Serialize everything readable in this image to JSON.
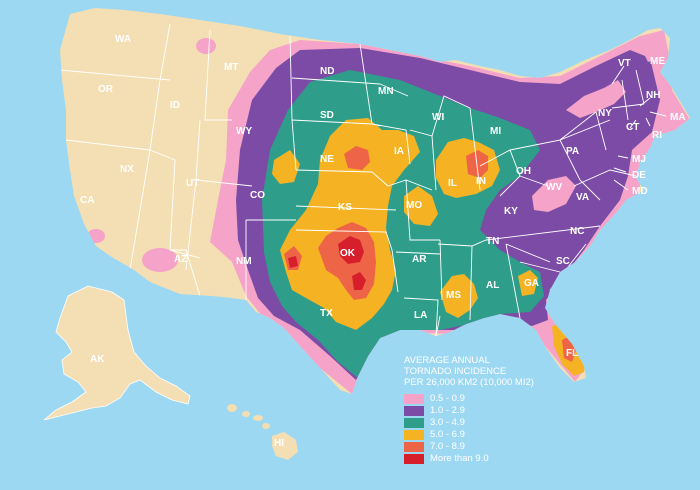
{
  "legend": {
    "title_lines": [
      "AVERAGE ANNUAL",
      "TORNADO INCIDENCE",
      "PER 26,000 KM2 (10,000 MI2)"
    ],
    "items": [
      {
        "label": "0.5 - 0.9",
        "color": "#f5a3c8"
      },
      {
        "label": "1.0 - 2.9",
        "color": "#7b4ba6"
      },
      {
        "label": "3.0 - 4.9",
        "color": "#2e9e8a"
      },
      {
        "label": "5.0 - 6.9",
        "color": "#f5b323"
      },
      {
        "label": "7.0 - 8.9",
        "color": "#ee6446"
      },
      {
        "label": "More than 9.0",
        "color": "#d71f2b"
      }
    ]
  },
  "colors": {
    "ocean": "#9dd8f2",
    "land_base": "#f3dfb3",
    "borders": "#ffffff"
  },
  "states": {
    "WA": "WA",
    "OR": "OR",
    "CA": "CA",
    "ID": "ID",
    "NX": "NX",
    "MT": "MT",
    "WY": "WY",
    "UT": "UT",
    "AZ": "AZ",
    "CO": "CO",
    "NM": "NM",
    "ND": "ND",
    "SD": "SD",
    "NE": "NE",
    "KS": "KS",
    "OK": "OK",
    "TX": "TX",
    "MN": "MN",
    "IA": "IA",
    "MO": "MO",
    "AR": "AR",
    "LA": "LA",
    "WI": "WI",
    "IL": "IL",
    "MS": "MS",
    "MI": "MI",
    "IN": "IN",
    "KY": "KY",
    "TN": "TN",
    "AL": "AL",
    "OH": "OH",
    "GA": "GA",
    "FL": "FL",
    "SC": "SC",
    "NC": "NC",
    "VA": "VA",
    "WV": "WV",
    "PA": "PA",
    "NY": "NY",
    "VT": "VT",
    "NH": "NH",
    "ME": "ME",
    "MA": "MA",
    "RI": "RI",
    "CT": "CT",
    "MJ": "MJ",
    "DE": "DE",
    "MD": "MD",
    "AK": "AK",
    "HI": "HI"
  }
}
